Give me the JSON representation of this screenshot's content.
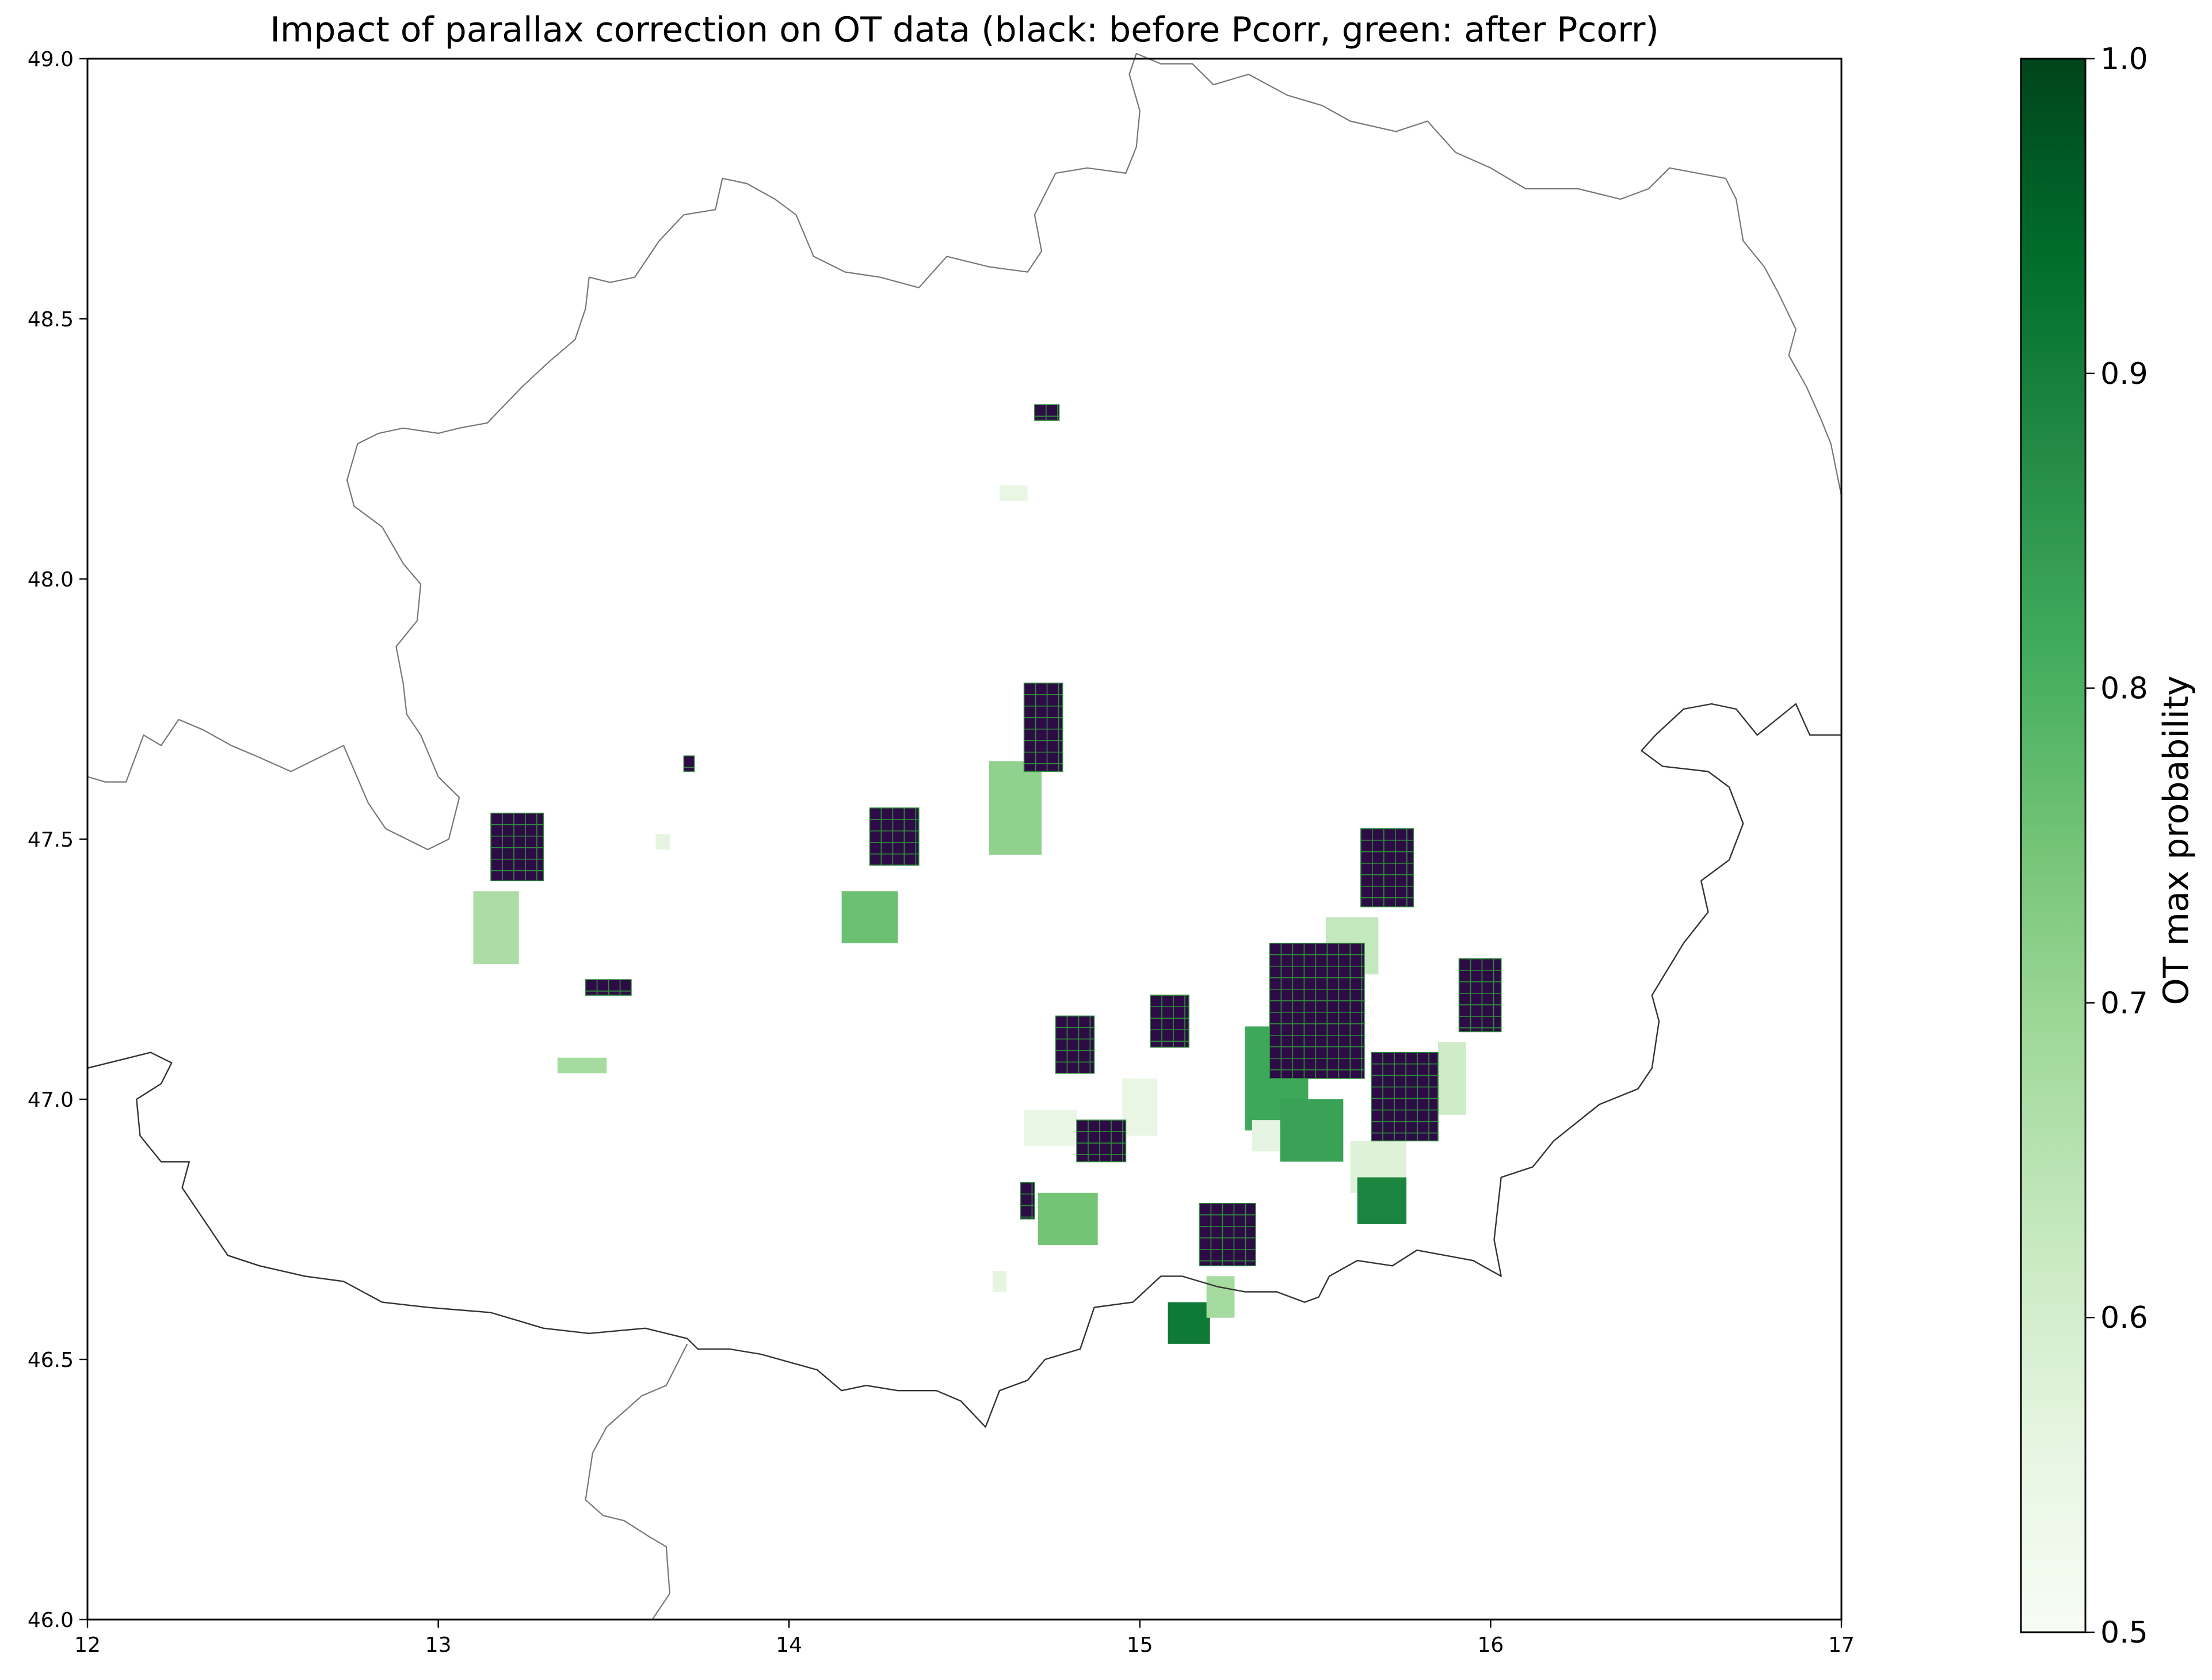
{
  "chart_data": {
    "type": "heatmap",
    "title": "Impact of parallax correction on OT data (black: before Pcorr, green: after Pcorr)",
    "xlim": [
      12,
      17
    ],
    "ylim": [
      46.0,
      49.0
    ],
    "x_ticks": [
      "12",
      "13",
      "14",
      "15",
      "16",
      "17"
    ],
    "y_ticks": [
      "46.0",
      "46.5",
      "47.0",
      "47.5",
      "48.0",
      "48.5",
      "49.0"
    ],
    "grid": false,
    "colorbar": {
      "label": "OT max probability",
      "range": [
        0.5,
        1.0
      ],
      "ticks": [
        "0.5",
        "0.6",
        "0.7",
        "0.8",
        "0.9",
        "1.0"
      ],
      "colormap": "Greens",
      "color_low": "#f7fcf5",
      "color_high": "#00441b"
    },
    "before_pcorr_color": "#2d0b45",
    "before_pcorr_grid_color": "#2e8b3a",
    "before_pcorr_clusters": [
      {
        "lon": [
          14.7,
          14.77
        ],
        "lat": [
          48.305,
          48.335
        ]
      },
      {
        "lon": [
          13.15,
          13.3
        ],
        "lat": [
          47.42,
          47.55
        ]
      },
      {
        "lon": [
          13.7,
          13.73
        ],
        "lat": [
          47.63,
          47.66
        ]
      },
      {
        "lon": [
          13.42,
          13.55
        ],
        "lat": [
          47.2,
          47.23
        ]
      },
      {
        "lon": [
          14.23,
          14.37
        ],
        "lat": [
          47.45,
          47.56
        ]
      },
      {
        "lon": [
          14.67,
          14.78
        ],
        "lat": [
          47.63,
          47.8
        ]
      },
      {
        "lon": [
          14.76,
          14.87
        ],
        "lat": [
          47.05,
          47.16
        ]
      },
      {
        "lon": [
          15.03,
          15.14
        ],
        "lat": [
          47.1,
          47.2
        ]
      },
      {
        "lon": [
          14.82,
          14.96
        ],
        "lat": [
          46.88,
          46.96
        ]
      },
      {
        "lon": [
          14.66,
          14.7
        ],
        "lat": [
          46.77,
          46.84
        ]
      },
      {
        "lon": [
          15.17,
          15.33
        ],
        "lat": [
          46.68,
          46.8
        ]
      },
      {
        "lon": [
          15.37,
          15.64
        ],
        "lat": [
          47.04,
          47.3
        ]
      },
      {
        "lon": [
          15.66,
          15.85
        ],
        "lat": [
          46.92,
          47.09
        ]
      },
      {
        "lon": [
          15.63,
          15.78
        ],
        "lat": [
          47.37,
          47.52
        ]
      },
      {
        "lon": [
          15.91,
          16.03
        ],
        "lat": [
          47.13,
          47.27
        ]
      }
    ],
    "after_pcorr_regions": [
      {
        "lon": [
          14.6,
          14.68
        ],
        "lat": [
          48.15,
          48.18
        ],
        "value": 0.55
      },
      {
        "lon": [
          13.1,
          13.23
        ],
        "lat": [
          47.26,
          47.4
        ],
        "value": 0.67
      },
      {
        "lon": [
          13.62,
          13.66
        ],
        "lat": [
          47.48,
          47.51
        ],
        "value": 0.56
      },
      {
        "lon": [
          13.34,
          13.48
        ],
        "lat": [
          47.05,
          47.08
        ],
        "value": 0.68
      },
      {
        "lon": [
          14.15,
          14.31
        ],
        "lat": [
          47.3,
          47.4
        ],
        "value": 0.76
      },
      {
        "lon": [
          14.57,
          14.72
        ],
        "lat": [
          47.47,
          47.65
        ],
        "value": 0.71
      },
      {
        "lon": [
          14.67,
          14.82
        ],
        "lat": [
          46.91,
          46.98
        ],
        "value": 0.55
      },
      {
        "lon": [
          14.95,
          15.05
        ],
        "lat": [
          46.93,
          47.04
        ],
        "value": 0.55
      },
      {
        "lon": [
          14.71,
          14.88
        ],
        "lat": [
          46.72,
          46.82
        ],
        "value": 0.75
      },
      {
        "lon": [
          14.58,
          14.62
        ],
        "lat": [
          46.63,
          46.67
        ],
        "value": 0.56
      },
      {
        "lon": [
          15.08,
          15.2
        ],
        "lat": [
          46.53,
          46.61
        ],
        "value": 0.91
      },
      {
        "lon": [
          15.19,
          15.27
        ],
        "lat": [
          46.58,
          46.66
        ],
        "value": 0.68
      },
      {
        "lon": [
          15.3,
          15.48
        ],
        "lat": [
          46.94,
          47.14
        ],
        "value": 0.82
      },
      {
        "lon": [
          15.4,
          15.58
        ],
        "lat": [
          46.88,
          47.0
        ],
        "value": 0.83
      },
      {
        "lon": [
          15.32,
          15.4
        ],
        "lat": [
          46.9,
          46.96
        ],
        "value": 0.56
      },
      {
        "lon": [
          15.53,
          15.68
        ],
        "lat": [
          47.24,
          47.35
        ],
        "value": 0.63
      },
      {
        "lon": [
          15.6,
          15.76
        ],
        "lat": [
          46.82,
          46.92
        ],
        "value": 0.58
      },
      {
        "lon": [
          15.62,
          15.76
        ],
        "lat": [
          46.76,
          46.85
        ],
        "value": 0.89
      },
      {
        "lon": [
          15.85,
          15.93
        ],
        "lat": [
          46.97,
          47.11
        ],
        "value": 0.61
      }
    ],
    "country_borders": [
      [
        [
          12.0,
          47.62
        ],
        [
          12.05,
          47.61
        ],
        [
          12.11,
          47.61
        ],
        [
          12.16,
          47.7
        ],
        [
          12.21,
          47.68
        ],
        [
          12.26,
          47.73
        ],
        [
          12.33,
          47.71
        ],
        [
          12.41,
          47.68
        ],
        [
          12.48,
          47.66
        ],
        [
          12.58,
          47.63
        ],
        [
          12.73,
          47.68
        ],
        [
          12.8,
          47.57
        ],
        [
          12.85,
          47.52
        ],
        [
          12.97,
          47.48
        ],
        [
          13.03,
          47.5
        ],
        [
          13.06,
          47.58
        ],
        [
          13.0,
          47.62
        ],
        [
          12.95,
          47.7
        ],
        [
          12.91,
          47.74
        ],
        [
          12.9,
          47.8
        ],
        [
          12.88,
          47.87
        ],
        [
          12.94,
          47.92
        ],
        [
          12.95,
          47.99
        ],
        [
          12.9,
          48.03
        ],
        [
          12.84,
          48.1
        ],
        [
          12.76,
          48.14
        ],
        [
          12.74,
          48.19
        ],
        [
          12.77,
          48.26
        ],
        [
          12.83,
          48.28
        ],
        [
          12.9,
          48.29
        ],
        [
          13.0,
          48.28
        ],
        [
          13.06,
          48.29
        ],
        [
          13.14,
          48.3
        ],
        [
          13.24,
          48.37
        ],
        [
          13.32,
          48.42
        ],
        [
          13.39,
          48.46
        ],
        [
          13.42,
          48.52
        ],
        [
          13.43,
          48.58
        ],
        [
          13.49,
          48.57
        ],
        [
          13.56,
          48.58
        ],
        [
          13.63,
          48.65
        ],
        [
          13.7,
          48.7
        ],
        [
          13.79,
          48.71
        ],
        [
          13.81,
          48.77
        ],
        [
          13.88,
          48.76
        ],
        [
          13.96,
          48.73
        ],
        [
          14.02,
          48.7
        ],
        [
          14.07,
          48.62
        ],
        [
          14.16,
          48.59
        ],
        [
          14.26,
          48.58
        ],
        [
          14.37,
          48.56
        ],
        [
          14.45,
          48.62
        ],
        [
          14.57,
          48.6
        ],
        [
          14.68,
          48.59
        ],
        [
          14.72,
          48.63
        ],
        [
          14.7,
          48.7
        ],
        [
          14.76,
          48.78
        ],
        [
          14.85,
          48.79
        ],
        [
          14.96,
          48.78
        ],
        [
          14.99,
          48.83
        ],
        [
          15.0,
          48.9
        ],
        [
          14.97,
          48.97
        ],
        [
          14.99,
          49.01
        ],
        [
          15.06,
          48.99
        ],
        [
          15.15,
          48.99
        ],
        [
          15.21,
          48.95
        ],
        [
          15.31,
          48.97
        ],
        [
          15.42,
          48.93
        ],
        [
          15.52,
          48.91
        ],
        [
          15.6,
          48.88
        ],
        [
          15.73,
          48.86
        ],
        [
          15.82,
          48.88
        ],
        [
          15.9,
          48.82
        ],
        [
          16.0,
          48.79
        ],
        [
          16.1,
          48.75
        ],
        [
          16.25,
          48.75
        ],
        [
          16.37,
          48.73
        ],
        [
          16.45,
          48.75
        ],
        [
          16.51,
          48.79
        ],
        [
          16.59,
          48.78
        ],
        [
          16.67,
          48.77
        ],
        [
          16.7,
          48.73
        ],
        [
          16.72,
          48.65
        ],
        [
          16.78,
          48.6
        ],
        [
          16.82,
          48.55
        ],
        [
          16.87,
          48.48
        ],
        [
          16.85,
          48.43
        ],
        [
          16.9,
          48.37
        ],
        [
          16.94,
          48.31
        ],
        [
          16.97,
          48.26
        ],
        [
          17.0,
          48.16
        ]
      ],
      [
        [
          17.0,
          47.7
        ],
        [
          16.91,
          47.7
        ],
        [
          16.87,
          47.76
        ],
        [
          16.76,
          47.7
        ],
        [
          16.7,
          47.75
        ],
        [
          16.63,
          47.76
        ],
        [
          16.55,
          47.75
        ],
        [
          16.47,
          47.7
        ],
        [
          16.43,
          47.67
        ],
        [
          16.49,
          47.64
        ],
        [
          16.62,
          47.63
        ],
        [
          16.68,
          47.6
        ],
        [
          16.72,
          47.53
        ],
        [
          16.68,
          47.46
        ],
        [
          16.6,
          47.42
        ],
        [
          16.62,
          47.36
        ],
        [
          16.55,
          47.3
        ],
        [
          16.46,
          47.2
        ],
        [
          16.48,
          47.15
        ],
        [
          16.46,
          47.06
        ],
        [
          16.42,
          47.02
        ],
        [
          16.31,
          46.99
        ],
        [
          16.18,
          46.92
        ],
        [
          16.12,
          46.87
        ],
        [
          16.03,
          46.85
        ],
        [
          16.01,
          46.73
        ],
        [
          16.03,
          46.66
        ],
        [
          15.95,
          46.69
        ],
        [
          15.79,
          46.71
        ],
        [
          15.72,
          46.68
        ],
        [
          15.62,
          46.69
        ],
        [
          15.54,
          46.66
        ],
        [
          15.51,
          46.62
        ],
        [
          15.47,
          46.61
        ],
        [
          15.39,
          46.63
        ],
        [
          15.3,
          46.63
        ],
        [
          15.22,
          46.64
        ],
        [
          15.12,
          46.66
        ],
        [
          15.06,
          46.66
        ],
        [
          14.98,
          46.61
        ],
        [
          14.87,
          46.6
        ],
        [
          14.83,
          46.52
        ],
        [
          14.73,
          46.5
        ],
        [
          14.68,
          46.46
        ],
        [
          14.6,
          46.44
        ],
        [
          14.56,
          46.37
        ],
        [
          14.49,
          46.42
        ],
        [
          14.42,
          46.44
        ],
        [
          14.31,
          46.44
        ],
        [
          14.22,
          46.45
        ],
        [
          14.15,
          46.44
        ],
        [
          14.08,
          46.48
        ],
        [
          13.92,
          46.51
        ],
        [
          13.83,
          46.52
        ],
        [
          13.74,
          46.52
        ],
        [
          13.71,
          46.54
        ],
        [
          13.59,
          46.56
        ],
        [
          13.43,
          46.55
        ],
        [
          13.3,
          46.56
        ],
        [
          13.15,
          46.59
        ],
        [
          12.97,
          46.6
        ],
        [
          12.84,
          46.61
        ],
        [
          12.73,
          46.65
        ],
        [
          12.62,
          46.66
        ],
        [
          12.49,
          46.68
        ],
        [
          12.4,
          46.7
        ],
        [
          12.34,
          46.76
        ],
        [
          12.27,
          46.83
        ],
        [
          12.29,
          46.88
        ],
        [
          12.21,
          46.88
        ],
        [
          12.15,
          46.93
        ],
        [
          12.14,
          47.0
        ],
        [
          12.21,
          47.03
        ],
        [
          12.24,
          47.07
        ],
        [
          12.18,
          47.09
        ],
        [
          12.12,
          47.08
        ],
        [
          12.0,
          47.06
        ]
      ],
      [
        [
          13.71,
          46.53
        ],
        [
          13.65,
          46.45
        ],
        [
          13.58,
          46.43
        ],
        [
          13.48,
          46.37
        ],
        [
          13.44,
          46.32
        ],
        [
          13.42,
          46.23
        ],
        [
          13.47,
          46.2
        ],
        [
          13.53,
          46.19
        ],
        [
          13.6,
          46.16
        ],
        [
          13.65,
          46.14
        ],
        [
          13.66,
          46.05
        ],
        [
          13.61,
          46.0
        ]
      ]
    ]
  }
}
